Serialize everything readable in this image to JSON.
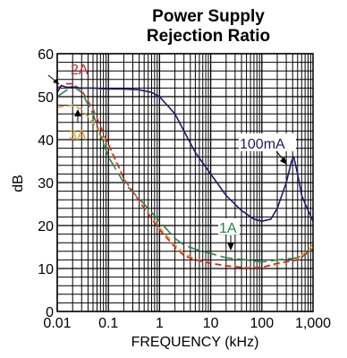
{
  "chart_data": {
    "type": "line",
    "title_line1": "Power Supply",
    "title_line2": "Rejection Ratio",
    "xlabel": "FREQUENCY (kHz)",
    "ylabel": "dB",
    "x_scale": "log",
    "xlim": [
      0.01,
      1000
    ],
    "ylim": [
      0,
      60
    ],
    "x_ticks": [
      0.01,
      0.1,
      1,
      10,
      100,
      1000
    ],
    "x_tick_labels": [
      "0.01",
      "0.1",
      "1",
      "10",
      "100",
      "1,000"
    ],
    "y_ticks": [
      0,
      10,
      20,
      30,
      40,
      50,
      60
    ],
    "y_tick_labels": [
      "0",
      "10",
      "20",
      "30",
      "40",
      "50",
      "60"
    ],
    "grid": true,
    "series": [
      {
        "name": "100mA",
        "color": "#1a1a7a",
        "dash": "solid",
        "points": [
          [
            0.01,
            51
          ],
          [
            0.012,
            52.6
          ],
          [
            0.015,
            52.2
          ],
          [
            0.02,
            52.2
          ],
          [
            0.03,
            52
          ],
          [
            0.05,
            52
          ],
          [
            0.1,
            51.8
          ],
          [
            0.2,
            51.8
          ],
          [
            0.4,
            51.6
          ],
          [
            0.7,
            51
          ],
          [
            1,
            50
          ],
          [
            2,
            46
          ],
          [
            3,
            42
          ],
          [
            5,
            37
          ],
          [
            10,
            32
          ],
          [
            20,
            27
          ],
          [
            40,
            23.5
          ],
          [
            70,
            21.5
          ],
          [
            100,
            21
          ],
          [
            150,
            21.5
          ],
          [
            200,
            24
          ],
          [
            300,
            30
          ],
          [
            380,
            35
          ],
          [
            420,
            36
          ],
          [
            500,
            32
          ],
          [
            600,
            27
          ],
          [
            800,
            23.5
          ],
          [
            1000,
            21
          ]
        ]
      },
      {
        "name": "1A",
        "color": "#1f8a3a",
        "dash": "long-dash",
        "points": [
          [
            0.01,
            50
          ],
          [
            0.02,
            52.5
          ],
          [
            0.03,
            51
          ],
          [
            0.05,
            46
          ],
          [
            0.07,
            41
          ],
          [
            0.1,
            36
          ],
          [
            0.2,
            30
          ],
          [
            0.5,
            25
          ],
          [
            1,
            21
          ],
          [
            2,
            17
          ],
          [
            3,
            15.5
          ],
          [
            5,
            14.5
          ],
          [
            10,
            13.5
          ],
          [
            20,
            12.5
          ],
          [
            50,
            12
          ],
          [
            100,
            11.5
          ],
          [
            200,
            12
          ],
          [
            500,
            12.5
          ],
          [
            1000,
            14.5
          ]
        ]
      },
      {
        "name": "2A",
        "color": "#e02020",
        "dash": "short-dash",
        "points": [
          [
            0.01,
            52
          ],
          [
            0.015,
            53
          ],
          [
            0.02,
            53
          ],
          [
            0.03,
            51.5
          ],
          [
            0.05,
            47
          ],
          [
            0.1,
            39
          ],
          [
            0.2,
            31
          ],
          [
            0.5,
            24
          ],
          [
            1,
            19
          ],
          [
            2,
            15
          ],
          [
            3,
            13
          ],
          [
            5,
            12
          ],
          [
            10,
            11.2
          ],
          [
            20,
            10.6
          ],
          [
            50,
            10.1
          ],
          [
            100,
            10.3
          ],
          [
            200,
            11.2
          ],
          [
            500,
            12
          ],
          [
            1000,
            14.5
          ]
        ]
      },
      {
        "name": "3A",
        "color": "#e8a020",
        "dash": "short-dash",
        "points": [
          [
            0.01,
            47.5
          ],
          [
            0.02,
            48
          ],
          [
            0.03,
            47
          ],
          [
            0.05,
            44
          ],
          [
            0.1,
            38.5
          ],
          [
            0.2,
            31
          ],
          [
            0.5,
            24
          ],
          [
            1,
            19.5
          ],
          [
            2,
            15.5
          ],
          [
            3,
            13.5
          ],
          [
            5,
            12.2
          ],
          [
            10,
            11.2
          ],
          [
            20,
            10.7
          ],
          [
            50,
            10.2
          ],
          [
            100,
            10.2
          ],
          [
            200,
            11
          ],
          [
            500,
            12.2
          ],
          [
            1000,
            15.5
          ]
        ]
      }
    ],
    "annotations": [
      {
        "text": "2A",
        "color": "#e02020",
        "series": "2A"
      },
      {
        "text": "3A",
        "color": "#e8a020",
        "series": "3A"
      },
      {
        "text": "100mA",
        "color": "#1a1a7a",
        "series": "100mA"
      },
      {
        "text": "1A",
        "color": "#1f8a3a",
        "series": "1A"
      }
    ]
  }
}
